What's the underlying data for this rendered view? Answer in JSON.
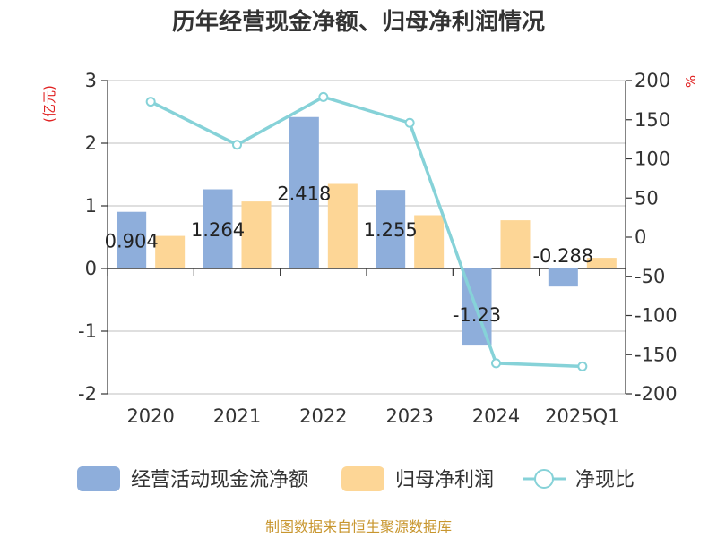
{
  "chart_data": {
    "type": "bar",
    "title": "历年经营现金净额、归母净利润情况",
    "categories": [
      "2020",
      "2021",
      "2022",
      "2023",
      "2024",
      "2025Q1"
    ],
    "y_left_unit": "(亿元)",
    "y_right_unit": "%",
    "ylim_left": [
      -2,
      3
    ],
    "yticks_left": [
      -2,
      -1,
      0,
      1,
      2,
      3
    ],
    "ylim_right": [
      -200,
      200
    ],
    "yticks_right": [
      -200,
      -150,
      -100,
      -50,
      0,
      50,
      100,
      150,
      200
    ],
    "series": [
      {
        "name": "经营活动现金流净额",
        "type": "bar",
        "axis": "left",
        "color": "#8eaedb",
        "values": [
          0.904,
          1.264,
          2.418,
          1.255,
          -1.23,
          -0.288
        ],
        "labels": [
          "0.904",
          "1.264",
          "2.418",
          "1.255",
          "-1.23",
          "-0.288"
        ]
      },
      {
        "name": "归母净利润",
        "type": "bar",
        "axis": "left",
        "color": "#fdd696",
        "values": [
          0.52,
          1.07,
          1.35,
          0.85,
          0.77,
          0.17
        ]
      },
      {
        "name": "净现比",
        "type": "line",
        "axis": "right",
        "color": "#86d2d8",
        "values": [
          173,
          118,
          179,
          146,
          -161,
          -165
        ]
      }
    ],
    "legend": [
      "经营活动现金流净额",
      "归母净利润",
      "净现比"
    ],
    "legend_position": "bottom",
    "source": "制图数据来自恒生聚源数据库"
  }
}
